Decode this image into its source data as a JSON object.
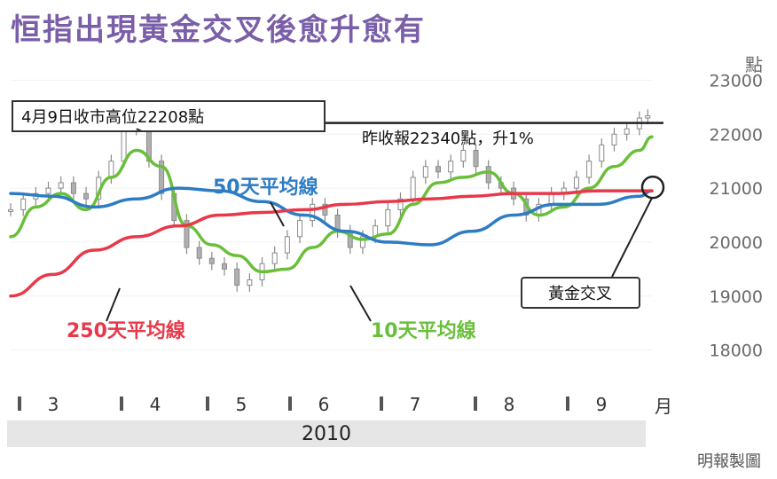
{
  "title": "恒指出現黃金交叉後愈升愈有",
  "colors": {
    "title": "#7a5fa8",
    "ma10": "#6abf3a",
    "ma50": "#2e7cc4",
    "ma250": "#e8384a",
    "candle": "#8a8a8a",
    "band": "#e6e6e6",
    "resistance": "#222222"
  },
  "chart_data": {
    "type": "line",
    "ylabel": "點",
    "ylim": [
      17500,
      23500
    ],
    "yticks": [
      18000,
      19000,
      20000,
      21000,
      22000,
      23000
    ],
    "x_axis": {
      "months": [
        "3",
        "4",
        "5",
        "6",
        "7",
        "8",
        "9"
      ],
      "month_suffix": "月",
      "year": "2010"
    },
    "annotations": {
      "peak": "4月9日收市高位22208點",
      "close": "昨收報22340點，升1%",
      "golden_cross": "黃金交叉"
    },
    "series": [
      {
        "name": "10天平均線",
        "x": [
          0,
          6,
          12,
          18,
          24,
          30,
          36,
          42,
          48,
          54,
          60,
          66,
          72,
          78,
          84,
          90,
          96,
          102,
          108,
          114,
          120,
          126,
          132,
          138,
          144,
          150,
          153
        ],
        "values": [
          20100,
          20650,
          20900,
          20600,
          21200,
          21700,
          21400,
          20300,
          19950,
          19750,
          19450,
          19500,
          19900,
          20200,
          20050,
          20150,
          20700,
          21100,
          21200,
          21300,
          20900,
          20500,
          20650,
          21000,
          21400,
          21700,
          21950
        ]
      },
      {
        "name": "50天平均線",
        "x": [
          0,
          10,
          20,
          30,
          40,
          50,
          60,
          70,
          80,
          90,
          100,
          110,
          120,
          130,
          140,
          150,
          153
        ],
        "values": [
          20900,
          20850,
          20650,
          20800,
          21000,
          20950,
          20750,
          20500,
          20200,
          20000,
          19950,
          20200,
          20500,
          20700,
          20700,
          20850,
          20950
        ]
      },
      {
        "name": "250天平均線",
        "x": [
          0,
          10,
          20,
          30,
          40,
          50,
          60,
          70,
          80,
          90,
          100,
          110,
          120,
          130,
          140,
          150,
          153
        ],
        "values": [
          19000,
          19400,
          19850,
          20100,
          20300,
          20500,
          20550,
          20600,
          20700,
          20750,
          20800,
          20850,
          20900,
          20900,
          20950,
          20950,
          20950
        ]
      }
    ],
    "candles": {
      "x": [
        0,
        3,
        6,
        9,
        12,
        15,
        18,
        21,
        24,
        27,
        30,
        33,
        36,
        39,
        42,
        45,
        48,
        51,
        54,
        57,
        60,
        63,
        66,
        69,
        72,
        75,
        78,
        81,
        84,
        87,
        90,
        93,
        96,
        99,
        102,
        105,
        108,
        111,
        114,
        117,
        120,
        123,
        126,
        129,
        132,
        135,
        138,
        141,
        144,
        147,
        150,
        152
      ],
      "close": [
        20600,
        20800,
        20900,
        21000,
        21100,
        20900,
        20800,
        21200,
        21500,
        22100,
        22200,
        21500,
        20900,
        20400,
        19900,
        19700,
        19600,
        19500,
        19200,
        19300,
        19600,
        19800,
        20100,
        20400,
        20700,
        20500,
        20200,
        19900,
        20100,
        20300,
        20600,
        20800,
        21200,
        21400,
        21300,
        21500,
        21700,
        21400,
        21100,
        21000,
        20800,
        20500,
        20700,
        20900,
        21000,
        21200,
        21500,
        21800,
        22000,
        22100,
        22300,
        22340
      ]
    },
    "resistance_level": 22208,
    "xlabel": ""
  },
  "credit": "明報製圖"
}
